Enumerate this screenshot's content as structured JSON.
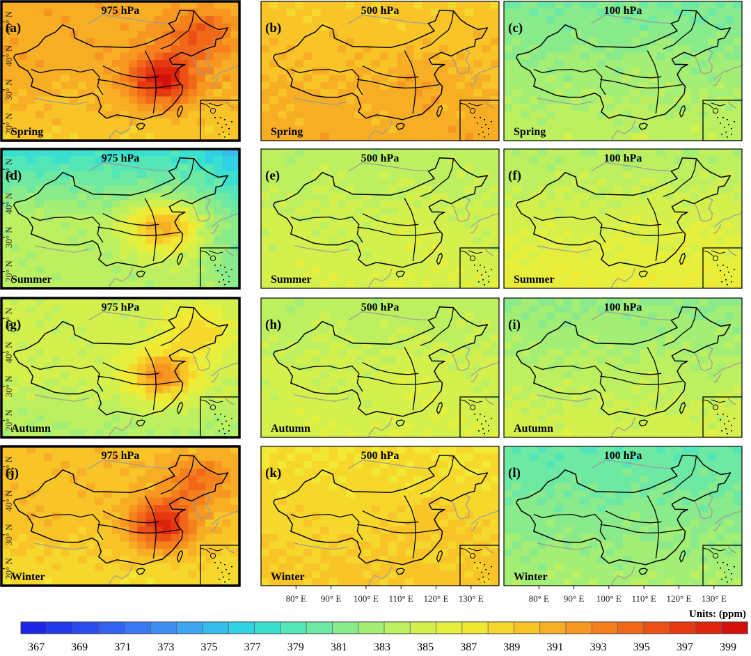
{
  "figure": {
    "units_label": "Units: (ppm)",
    "lon_ticks": [
      "80° E",
      "90° E",
      "100° E",
      "110° E",
      "120° E",
      "130° E"
    ],
    "lat_ticks": [
      "50° N",
      "40° N",
      "30° N",
      "20° N"
    ],
    "colorbar": {
      "tick_labels": [
        "367",
        "369",
        "371",
        "373",
        "375",
        "377",
        "379",
        "381",
        "383",
        "385",
        "387",
        "389",
        "391",
        "393",
        "395",
        "397",
        "399"
      ],
      "colors": [
        "#1d26e6",
        "#2236ea",
        "#2a4cee",
        "#3260f0",
        "#3a77f2",
        "#3f8ff2",
        "#3ea6f0",
        "#36bdeb",
        "#2fd3e2",
        "#3ae0cf",
        "#52e6b8",
        "#6de9a3",
        "#89eb8c",
        "#a3ee75",
        "#bdf060",
        "#d4f04c",
        "#e6f03c",
        "#f2e932",
        "#f6d82c",
        "#f8c428",
        "#f8ae24",
        "#f79720",
        "#f5801c",
        "#f16818",
        "#ec5014",
        "#e63910",
        "#de220c",
        "#d4100a"
      ]
    }
  },
  "chart_data": {
    "type": "heatmap",
    "units": "ppm",
    "colorbar_range": [
      367,
      399
    ],
    "rows": [
      "Spring",
      "Summer",
      "Autumn",
      "Winter"
    ],
    "columns": [
      "975 hPa",
      "500 hPa",
      "100 hPa"
    ],
    "panels": [
      {
        "label": "(a)",
        "season": "Spring",
        "level": "975 hPa",
        "mean_ppm": 393,
        "highlight": true
      },
      {
        "label": "(b)",
        "season": "Spring",
        "level": "500 hPa",
        "mean_ppm": 389.5,
        "highlight": false
      },
      {
        "label": "(c)",
        "season": "Spring",
        "level": "100 hPa",
        "mean_ppm": 382,
        "highlight": false
      },
      {
        "label": "(d)",
        "season": "Summer",
        "level": "975 hPa",
        "mean_ppm": 382,
        "highlight": true
      },
      {
        "label": "(e)",
        "season": "Summer",
        "level": "500 hPa",
        "mean_ppm": 384,
        "highlight": false
      },
      {
        "label": "(f)",
        "season": "Summer",
        "level": "100 hPa",
        "mean_ppm": 384.5,
        "highlight": false
      },
      {
        "label": "(g)",
        "season": "Autumn",
        "level": "975 hPa",
        "mean_ppm": 387,
        "highlight": true
      },
      {
        "label": "(h)",
        "season": "Autumn",
        "level": "500 hPa",
        "mean_ppm": 384,
        "highlight": false
      },
      {
        "label": "(i)",
        "season": "Autumn",
        "level": "100 hPa",
        "mean_ppm": 383,
        "highlight": false
      },
      {
        "label": "(j)",
        "season": "Winter",
        "level": "975 hPa",
        "mean_ppm": 392,
        "highlight": true
      },
      {
        "label": "(k)",
        "season": "Winter",
        "level": "500 hPa",
        "mean_ppm": 388,
        "highlight": false
      },
      {
        "label": "(l)",
        "season": "Winter",
        "level": "100 hPa",
        "mean_ppm": 381,
        "highlight": false
      }
    ]
  }
}
